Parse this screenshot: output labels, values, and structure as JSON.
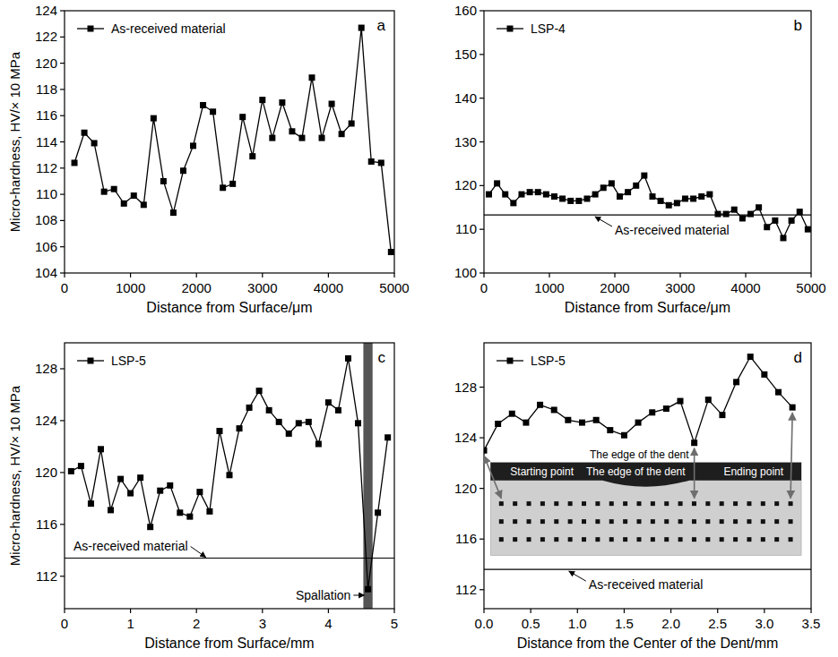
{
  "chart_data": [
    {
      "type": "line",
      "label": "a",
      "x_label": "Distance from Surface/μm",
      "y_label": "Micro-hardness, HV/× 10 MPa",
      "xlim": [
        0,
        5000
      ],
      "ylim": [
        104,
        124
      ],
      "xticks": [
        0,
        1000,
        2000,
        3000,
        4000,
        5000
      ],
      "yticks": [
        104,
        106,
        108,
        110,
        112,
        114,
        116,
        118,
        120,
        122,
        124
      ],
      "legend": "top-left",
      "series": [
        {
          "name": "As-received material",
          "color": "#000000",
          "marker": "square",
          "x": [
            150,
            300,
            450,
            600,
            750,
            900,
            1050,
            1200,
            1350,
            1500,
            1650,
            1800,
            1950,
            2100,
            2250,
            2400,
            2550,
            2700,
            2850,
            3000,
            3150,
            3300,
            3450,
            3600,
            3750,
            3900,
            4050,
            4200,
            4350,
            4500,
            4650,
            4800,
            4950
          ],
          "values": [
            112.4,
            114.7,
            113.9,
            110.2,
            110.4,
            109.3,
            109.9,
            109.2,
            115.8,
            111.0,
            108.6,
            111.8,
            113.7,
            116.8,
            116.3,
            110.5,
            110.8,
            115.9,
            112.9,
            117.2,
            114.3,
            117.0,
            114.8,
            114.3,
            118.9,
            114.3,
            116.9,
            114.6,
            115.4,
            122.7,
            112.5,
            112.4,
            105.6
          ]
        }
      ]
    },
    {
      "type": "line",
      "label": "b",
      "x_label": "Distance from Surface/μm",
      "xlim": [
        0,
        5000
      ],
      "ylim": [
        100,
        160
      ],
      "xticks": [
        0,
        1000,
        2000,
        3000,
        4000,
        5000
      ],
      "yticks": [
        100,
        110,
        120,
        130,
        140,
        150,
        160
      ],
      "legend": "top-left",
      "reference": {
        "value": 113.3,
        "label": "As-received material"
      },
      "series": [
        {
          "name": "LSP-4",
          "color": "#000000",
          "marker": "square",
          "x": [
            75,
            200,
            325,
            450,
            575,
            700,
            825,
            950,
            1075,
            1200,
            1325,
            1450,
            1575,
            1700,
            1825,
            1950,
            2075,
            2200,
            2325,
            2450,
            2575,
            2700,
            2825,
            2950,
            3075,
            3200,
            3325,
            3450,
            3575,
            3700,
            3825,
            3950,
            4075,
            4200,
            4325,
            4450,
            4575,
            4700,
            4825,
            4950
          ],
          "values": [
            118,
            120.5,
            118,
            116,
            118,
            118.5,
            118.5,
            118,
            117.5,
            117,
            116.5,
            116.5,
            117,
            118,
            119.5,
            120.5,
            117.5,
            118.5,
            120,
            122.3,
            117.5,
            116.5,
            115.5,
            116,
            117,
            117,
            117.5,
            118,
            113.5,
            113.5,
            114.5,
            112.5,
            113.5,
            115,
            110.5,
            112,
            108,
            112,
            114,
            110
          ]
        }
      ]
    },
    {
      "type": "line",
      "label": "c",
      "x_label": "Distance from Surface/mm",
      "y_label": "Micro-hardness, HV/× 10 MPa",
      "xlim": [
        0,
        5
      ],
      "ylim": [
        109.5,
        130
      ],
      "xticks": [
        0,
        1,
        2,
        3,
        4,
        5
      ],
      "yticks": [
        112,
        116,
        120,
        124,
        128
      ],
      "legend": "top-left",
      "reference": {
        "value": 113.4,
        "label": "As-received material"
      },
      "band": {
        "x": [
          4.53,
          4.67
        ],
        "label": "Spallation"
      },
      "series": [
        {
          "name": "LSP-5",
          "color": "#000000",
          "marker": "square",
          "x": [
            0.1,
            0.25,
            0.4,
            0.55,
            0.7,
            0.85,
            1.0,
            1.15,
            1.3,
            1.45,
            1.6,
            1.75,
            1.9,
            2.05,
            2.2,
            2.35,
            2.5,
            2.65,
            2.8,
            2.95,
            3.1,
            3.25,
            3.4,
            3.55,
            3.7,
            3.85,
            4.0,
            4.15,
            4.3,
            4.45,
            4.6,
            4.75,
            4.9
          ],
          "values": [
            120.1,
            120.5,
            117.6,
            121.8,
            117.1,
            119.5,
            118.4,
            119.6,
            115.8,
            118.6,
            119.0,
            116.9,
            116.6,
            118.5,
            117.0,
            123.2,
            119.8,
            123.4,
            125.0,
            126.3,
            124.8,
            123.9,
            123.0,
            123.8,
            123.9,
            122.2,
            125.4,
            124.8,
            128.8,
            123.8,
            111.0,
            116.9,
            122.7
          ]
        }
      ]
    },
    {
      "type": "line",
      "label": "d",
      "x_label": "Distance from the Center of the Dent/mm",
      "xlim": [
        0,
        3.5
      ],
      "ylim": [
        110.5,
        131.5
      ],
      "xticks": [
        {
          "value": 0,
          "label": "0.0"
        },
        0.5,
        {
          "value": 1,
          "label": "1.0"
        },
        1.5,
        {
          "value": 2,
          "label": "2.0"
        },
        2.5,
        {
          "value": 3,
          "label": "3.0"
        },
        3.5
      ],
      "yticks": [
        112,
        116,
        120,
        124,
        128
      ],
      "legend": "top-left",
      "reference": {
        "value": 113.6,
        "label": "As-received material"
      },
      "annotations": [
        {
          "text": "The edge of the dent",
          "x": 2.25,
          "y": 123.6
        }
      ],
      "inset_labels": [
        {
          "text": "Starting point",
          "x": 0
        },
        {
          "text": "The edge of the dent",
          "x": 2.25
        },
        {
          "text": "Ending point",
          "x": 3.3
        }
      ],
      "series": [
        {
          "name": "LSP-5",
          "color": "#000000",
          "marker": "square",
          "x": [
            0,
            0.15,
            0.3,
            0.45,
            0.6,
            0.75,
            0.9,
            1.05,
            1.2,
            1.35,
            1.5,
            1.65,
            1.8,
            1.95,
            2.1,
            2.25,
            2.4,
            2.55,
            2.7,
            2.85,
            3.0,
            3.15,
            3.3
          ],
          "values": [
            123.0,
            125.1,
            125.9,
            125.2,
            126.6,
            126.2,
            125.4,
            125.2,
            125.4,
            124.6,
            124.2,
            125.2,
            126.0,
            126.3,
            126.9,
            123.6,
            127.0,
            125.8,
            128.4,
            130.4,
            129.0,
            127.6,
            126.4
          ]
        }
      ]
    }
  ]
}
